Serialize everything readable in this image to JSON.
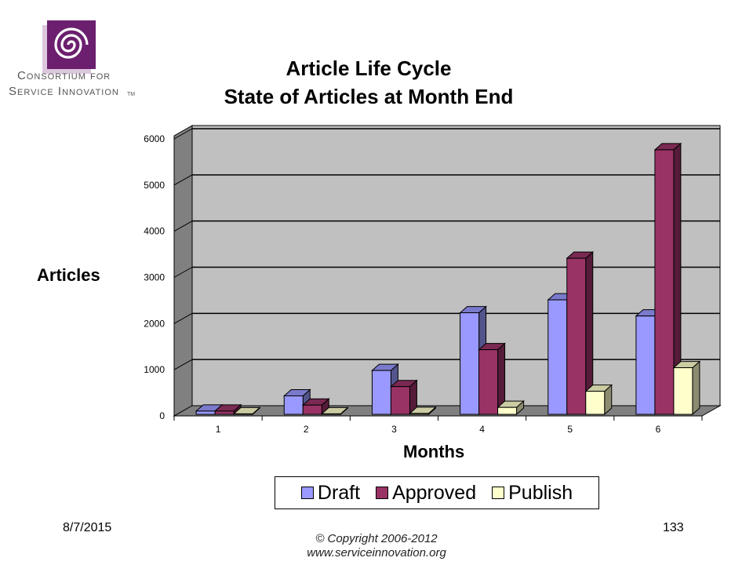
{
  "logo": {
    "icon": "spiral-logo-icon",
    "line1": "Consortium for",
    "line2": "Service Innovation",
    "tm": "TM",
    "colors": {
      "primary": "#6b1f6e"
    }
  },
  "chart_data": {
    "type": "bar",
    "title": "Article Life Cycle",
    "subtitle": "State of Articles at Month End",
    "xlabel": "Months",
    "ylabel": "Articles",
    "ylim": [
      0,
      6000
    ],
    "yticks": [
      "0",
      "1000",
      "2000",
      "3000",
      "4000",
      "5000",
      "6000"
    ],
    "categories": [
      "1",
      "2",
      "3",
      "4",
      "5",
      "6"
    ],
    "series": [
      {
        "name": "Draft",
        "color": "#9999ff",
        "values": [
          70,
          400,
          950,
          2200,
          2480,
          2130
        ]
      },
      {
        "name": "Approved",
        "color": "#993366",
        "values": [
          70,
          200,
          600,
          1400,
          3380,
          5730
        ]
      },
      {
        "name": "Publish",
        "color": "#ffffcc",
        "values": [
          10,
          10,
          20,
          150,
          500,
          1010
        ]
      }
    ],
    "grid": true,
    "legend": "bottom",
    "style": "3d-column"
  },
  "footer": {
    "date": "8/7/2015",
    "page": "133",
    "copyright_line1": "© Copyright 2006-2012",
    "copyright_line2": "www.serviceinnovation.org"
  }
}
